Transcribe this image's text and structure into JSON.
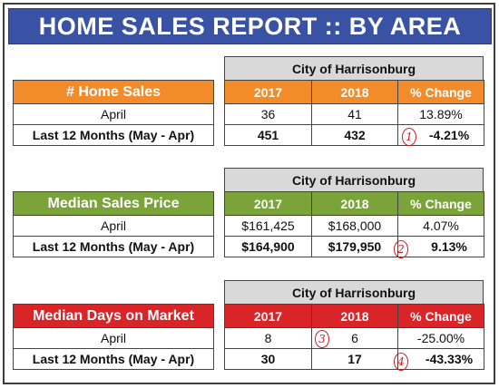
{
  "title": "HOME SALES REPORT  ::  BY AREA",
  "sections": [
    {
      "label": "# Home Sales",
      "color": "#f28b2a",
      "area": "City of Harrisonburg",
      "columns": [
        "2017",
        "2018",
        "% Change"
      ],
      "rows": [
        {
          "label": "April",
          "v2017": "36",
          "v2018": "41",
          "change": "13.89%"
        },
        {
          "label": "Last 12 Months (May - Apr)",
          "v2017": "451",
          "v2018": "432",
          "change": "-4.21%"
        }
      ],
      "annotation": "1"
    },
    {
      "label": "Median Sales Price",
      "color": "#7aa33a",
      "area": "City of Harrisonburg",
      "columns": [
        "2017",
        "2018",
        "% Change"
      ],
      "rows": [
        {
          "label": "April",
          "v2017": "$161,425",
          "v2018": "$168,000",
          "change": "4.07%"
        },
        {
          "label": "Last 12 Months (May - Apr)",
          "v2017": "$164,900",
          "v2018": "$179,950",
          "change": "9.13%"
        }
      ],
      "annotation": "2"
    },
    {
      "label": "Median Days on Market",
      "color": "#d92428",
      "area": "City of Harrisonburg",
      "columns": [
        "2017",
        "2018",
        "% Change"
      ],
      "rows": [
        {
          "label": "April",
          "v2017": "8",
          "v2018": "6",
          "change": "-25.00%"
        },
        {
          "label": "Last 12 Months (May - Apr)",
          "v2017": "30",
          "v2018": "17",
          "change": "-43.33%"
        }
      ],
      "annotations": [
        "3",
        "4"
      ]
    }
  ]
}
